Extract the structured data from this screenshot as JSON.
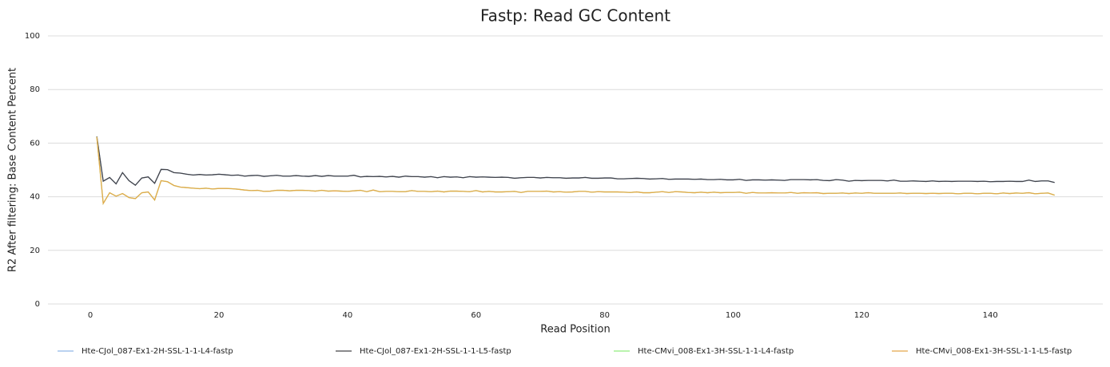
{
  "chart_data": {
    "type": "line",
    "title": "Fastp: Read GC Content",
    "xlabel": "Read Position",
    "ylabel": "R2 After filtering: Base Content Percent",
    "x": [
      1,
      2,
      3,
      4,
      5,
      6,
      7,
      8,
      9,
      10,
      11,
      12,
      13,
      14,
      15,
      16,
      17,
      18,
      19,
      20,
      21,
      22,
      23,
      24,
      25,
      26,
      27,
      28,
      29,
      30,
      31,
      32,
      33,
      34,
      35,
      36,
      37,
      38,
      39,
      40,
      41,
      42,
      43,
      44,
      45,
      46,
      47,
      48,
      49,
      50,
      51,
      52,
      53,
      54,
      55,
      56,
      57,
      58,
      59,
      60,
      61,
      62,
      63,
      64,
      65,
      66,
      67,
      68,
      69,
      70,
      71,
      72,
      73,
      74,
      75,
      76,
      77,
      78,
      79,
      80,
      81,
      82,
      83,
      84,
      85,
      86,
      87,
      88,
      89,
      90,
      91,
      92,
      93,
      94,
      95,
      96,
      97,
      98,
      99,
      100,
      101,
      102,
      103,
      104,
      105,
      106,
      107,
      108,
      109,
      110,
      111,
      112,
      113,
      114,
      115,
      116,
      117,
      118,
      119,
      120,
      121,
      122,
      123,
      124,
      125,
      126,
      127,
      128,
      129,
      130,
      131,
      132,
      133,
      134,
      135,
      136,
      137,
      138,
      139,
      140,
      141,
      142,
      143,
      144,
      145,
      146,
      147,
      148,
      149,
      150
    ],
    "series": [
      {
        "name": "Hte-CJol_087-Ex1-2H-SSL-1-1-L4-fastp",
        "color": "#90b8e8",
        "values": [
          62.5,
          45.8,
          47.2,
          44.8,
          49.0,
          46.0,
          44.3,
          47.0,
          47.4,
          45.0,
          50.2,
          50.1,
          49.0,
          48.8,
          48.4,
          48.1,
          48.3,
          48.1,
          48.2,
          48.4,
          48.2,
          48.0,
          48.1,
          47.7,
          47.9,
          48.0,
          47.6,
          47.8,
          48.0,
          47.7,
          47.7,
          47.9,
          47.7,
          47.6,
          47.9,
          47.6,
          47.9,
          47.7,
          47.7,
          47.7,
          48.0,
          47.4,
          47.6,
          47.5,
          47.6,
          47.4,
          47.6,
          47.3,
          47.7,
          47.5,
          47.5,
          47.3,
          47.5,
          47.1,
          47.5,
          47.3,
          47.4,
          47.1,
          47.5,
          47.3,
          47.4,
          47.3,
          47.2,
          47.3,
          47.2,
          46.9,
          47.1,
          47.2,
          47.2,
          47.0,
          47.2,
          47.1,
          47.1,
          46.9,
          47.0,
          47.0,
          47.2,
          46.9,
          46.9,
          47.0,
          47.0,
          46.7,
          46.7,
          46.8,
          46.9,
          46.8,
          46.6,
          46.7,
          46.8,
          46.5,
          46.6,
          46.6,
          46.6,
          46.5,
          46.6,
          46.4,
          46.4,
          46.5,
          46.3,
          46.3,
          46.5,
          46.1,
          46.3,
          46.3,
          46.2,
          46.3,
          46.2,
          46.1,
          46.4,
          46.4,
          46.4,
          46.3,
          46.4,
          46.1,
          46.0,
          46.4,
          46.2,
          45.8,
          46.1,
          46.0,
          46.1,
          46.1,
          46.1,
          45.9,
          46.2,
          45.8,
          45.8,
          45.9,
          45.8,
          45.7,
          45.9,
          45.7,
          45.8,
          45.7,
          45.8,
          45.8,
          45.8,
          45.7,
          45.8,
          45.6,
          45.7,
          45.7,
          45.8,
          45.7,
          45.7,
          46.2,
          45.7,
          45.9,
          45.9,
          45.3
        ]
      },
      {
        "name": "Hte-CJol_087-Ex1-2H-SSL-1-1-L5-fastp",
        "color": "#434348",
        "values": [
          62.5,
          45.8,
          47.2,
          44.8,
          49.0,
          46.0,
          44.3,
          47.0,
          47.4,
          45.0,
          50.2,
          50.1,
          49.0,
          48.8,
          48.4,
          48.1,
          48.3,
          48.1,
          48.2,
          48.4,
          48.2,
          48.0,
          48.1,
          47.7,
          47.9,
          48.0,
          47.6,
          47.8,
          48.0,
          47.7,
          47.7,
          47.9,
          47.7,
          47.6,
          47.9,
          47.6,
          47.9,
          47.7,
          47.7,
          47.7,
          48.0,
          47.4,
          47.6,
          47.5,
          47.6,
          47.4,
          47.6,
          47.3,
          47.7,
          47.5,
          47.5,
          47.3,
          47.5,
          47.1,
          47.5,
          47.3,
          47.4,
          47.1,
          47.5,
          47.3,
          47.4,
          47.3,
          47.2,
          47.3,
          47.2,
          46.9,
          47.1,
          47.2,
          47.2,
          47.0,
          47.2,
          47.1,
          47.1,
          46.9,
          47.0,
          47.0,
          47.2,
          46.9,
          46.9,
          47.0,
          47.0,
          46.7,
          46.7,
          46.8,
          46.9,
          46.8,
          46.6,
          46.7,
          46.8,
          46.5,
          46.6,
          46.6,
          46.6,
          46.5,
          46.6,
          46.4,
          46.4,
          46.5,
          46.3,
          46.3,
          46.5,
          46.1,
          46.3,
          46.3,
          46.2,
          46.3,
          46.2,
          46.1,
          46.4,
          46.4,
          46.4,
          46.3,
          46.4,
          46.1,
          46.0,
          46.4,
          46.2,
          45.8,
          46.1,
          46.0,
          46.1,
          46.1,
          46.1,
          45.9,
          46.2,
          45.8,
          45.8,
          45.9,
          45.8,
          45.7,
          45.9,
          45.7,
          45.8,
          45.7,
          45.8,
          45.8,
          45.8,
          45.7,
          45.8,
          45.6,
          45.7,
          45.7,
          45.8,
          45.7,
          45.7,
          46.2,
          45.7,
          45.9,
          45.9,
          45.3
        ]
      },
      {
        "name": "Hte-CMvi_008-Ex1-3H-SSL-1-1-L4-fastp",
        "color": "#90ed7d",
        "values": [
          62.3,
          37.5,
          41.5,
          40.2,
          41.2,
          39.7,
          39.3,
          41.5,
          41.8,
          38.8,
          46.0,
          45.6,
          44.2,
          43.6,
          43.4,
          43.2,
          43.0,
          43.2,
          42.9,
          43.1,
          43.1,
          43.0,
          42.8,
          42.5,
          42.3,
          42.4,
          42.0,
          42.1,
          42.4,
          42.4,
          42.2,
          42.4,
          42.4,
          42.3,
          42.1,
          42.4,
          42.1,
          42.2,
          42.1,
          42.0,
          42.2,
          42.4,
          41.9,
          42.5,
          41.9,
          42.0,
          42.0,
          41.9,
          41.9,
          42.3,
          42.0,
          42.0,
          41.9,
          42.1,
          41.8,
          42.1,
          42.1,
          42.0,
          41.9,
          42.3,
          41.8,
          42.0,
          41.8,
          41.8,
          41.9,
          42.0,
          41.6,
          42.0,
          42.0,
          42.0,
          42.1,
          41.8,
          41.9,
          41.7,
          41.8,
          42.0,
          42.0,
          41.7,
          41.9,
          41.8,
          41.8,
          41.8,
          41.7,
          41.6,
          41.8,
          41.5,
          41.5,
          41.7,
          41.9,
          41.6,
          41.9,
          41.8,
          41.6,
          41.5,
          41.7,
          41.5,
          41.7,
          41.5,
          41.6,
          41.6,
          41.7,
          41.3,
          41.6,
          41.4,
          41.4,
          41.5,
          41.4,
          41.4,
          41.6,
          41.3,
          41.5,
          41.4,
          41.5,
          41.2,
          41.3,
          41.3,
          41.4,
          41.2,
          41.4,
          41.3,
          41.5,
          41.3,
          41.3,
          41.3,
          41.3,
          41.4,
          41.2,
          41.3,
          41.3,
          41.2,
          41.3,
          41.2,
          41.3,
          41.3,
          41.1,
          41.3,
          41.3,
          41.1,
          41.3,
          41.3,
          41.1,
          41.4,
          41.2,
          41.4,
          41.3,
          41.5,
          41.1,
          41.3,
          41.4,
          40.6
        ]
      },
      {
        "name": "Hte-CMvi_008-Ex1-3H-SSL-1-1-L5-fastp",
        "color": "#e4a84b",
        "values": [
          62.3,
          37.5,
          41.5,
          40.2,
          41.2,
          39.7,
          39.3,
          41.5,
          41.8,
          38.8,
          46.0,
          45.6,
          44.2,
          43.6,
          43.4,
          43.2,
          43.0,
          43.2,
          42.9,
          43.1,
          43.1,
          43.0,
          42.8,
          42.5,
          42.3,
          42.4,
          42.0,
          42.1,
          42.4,
          42.4,
          42.2,
          42.4,
          42.4,
          42.3,
          42.1,
          42.4,
          42.1,
          42.2,
          42.1,
          42.0,
          42.2,
          42.4,
          41.9,
          42.5,
          41.9,
          42.0,
          42.0,
          41.9,
          41.9,
          42.3,
          42.0,
          42.0,
          41.9,
          42.1,
          41.8,
          42.1,
          42.1,
          42.0,
          41.9,
          42.3,
          41.8,
          42.0,
          41.8,
          41.8,
          41.9,
          42.0,
          41.6,
          42.0,
          42.0,
          42.0,
          42.1,
          41.8,
          41.9,
          41.7,
          41.8,
          42.0,
          42.0,
          41.7,
          41.9,
          41.8,
          41.8,
          41.8,
          41.7,
          41.6,
          41.8,
          41.5,
          41.5,
          41.7,
          41.9,
          41.6,
          41.9,
          41.8,
          41.6,
          41.5,
          41.7,
          41.5,
          41.7,
          41.5,
          41.6,
          41.6,
          41.7,
          41.3,
          41.6,
          41.4,
          41.4,
          41.5,
          41.4,
          41.4,
          41.6,
          41.3,
          41.5,
          41.4,
          41.5,
          41.2,
          41.3,
          41.3,
          41.4,
          41.2,
          41.4,
          41.3,
          41.5,
          41.3,
          41.3,
          41.3,
          41.3,
          41.4,
          41.2,
          41.3,
          41.3,
          41.2,
          41.3,
          41.2,
          41.3,
          41.3,
          41.1,
          41.3,
          41.3,
          41.1,
          41.3,
          41.3,
          41.1,
          41.4,
          41.2,
          41.4,
          41.3,
          41.5,
          41.1,
          41.3,
          41.4,
          40.6
        ]
      }
    ],
    "xlim": [
      -6.6,
      157.5
    ],
    "xticks": [
      0,
      20,
      40,
      60,
      80,
      100,
      120,
      140
    ],
    "ylim": [
      0,
      100
    ],
    "yticks": [
      0,
      20,
      40,
      60,
      80,
      100
    ],
    "grid": true,
    "legend": "bottom"
  }
}
